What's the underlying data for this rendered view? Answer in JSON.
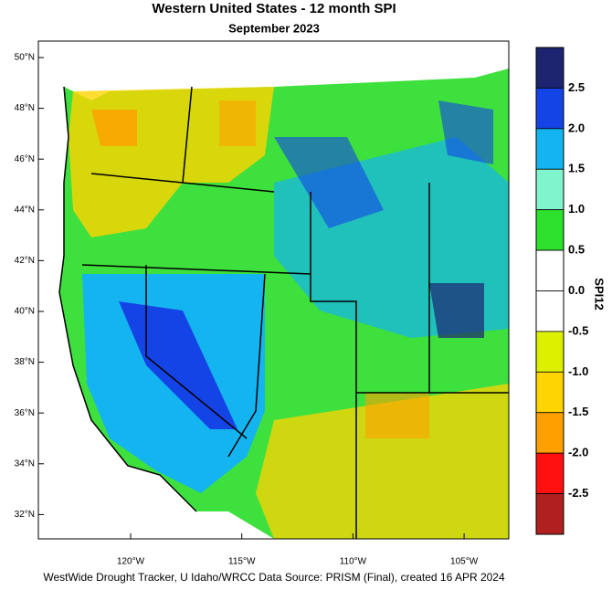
{
  "header": {
    "title": "Western United States - 12 month SPI",
    "subtitle": "September 2023"
  },
  "map": {
    "lat_labels": [
      "50°N",
      "48°N",
      "46°N",
      "44°N",
      "42°N",
      "40°N",
      "38°N",
      "36°N",
      "34°N",
      "32°N"
    ],
    "lon_labels": [
      "120°W",
      "115°W",
      "110°W",
      "105°W"
    ]
  },
  "legend": {
    "title": "SPI12",
    "colors": [
      "#1c2470",
      "#1444e6",
      "#14b4f0",
      "#80f4cc",
      "#2ee02e",
      "#ffffff",
      "#ffffff",
      "#dcf000",
      "#ffd400",
      "#ffa000",
      "#ff1010",
      "#b02020"
    ],
    "labels": [
      "2.5",
      "2.0",
      "1.5",
      "1.0",
      "0.5",
      "0.0",
      "-0.5",
      "-1.0",
      "-1.5",
      "-2.0",
      "-2.5"
    ]
  },
  "footer": "WestWide Drought Tracker, U Idaho/WRCC Data Source: PRISM (Final), created 16 APR 2024"
}
